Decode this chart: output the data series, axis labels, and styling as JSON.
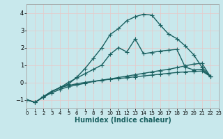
{
  "xlabel": "Humidex (Indice chaleur)",
  "bg_color": "#c8e8ec",
  "line_color": "#1a6060",
  "grid_color": "#e8c8c8",
  "xlim": [
    0,
    23
  ],
  "ylim": [
    -1.5,
    4.5
  ],
  "yticks": [
    -1,
    0,
    1,
    2,
    3,
    4
  ],
  "n_xticks": 24,
  "curves": [
    {
      "x": [
        0,
        1,
        2,
        3,
        4,
        5,
        6,
        7,
        8,
        9,
        10,
        11,
        12,
        13,
        14,
        15,
        16,
        17,
        18,
        19,
        20,
        21,
        22
      ],
      "y": [
        -1.0,
        -1.15,
        -0.85,
        -0.6,
        -0.4,
        -0.25,
        -0.15,
        -0.05,
        0.05,
        0.12,
        0.18,
        0.22,
        0.27,
        0.32,
        0.37,
        0.42,
        0.47,
        0.52,
        0.57,
        0.6,
        0.63,
        0.65,
        0.35
      ]
    },
    {
      "x": [
        0,
        1,
        2,
        3,
        4,
        5,
        6,
        7,
        8,
        9,
        10,
        11,
        12,
        13,
        14,
        15,
        16,
        17,
        18,
        19,
        20,
        21,
        22
      ],
      "y": [
        -1.0,
        -1.15,
        -0.82,
        -0.52,
        -0.3,
        -0.18,
        -0.08,
        0.0,
        0.06,
        0.13,
        0.2,
        0.28,
        0.36,
        0.44,
        0.52,
        0.6,
        0.68,
        0.75,
        0.85,
        0.95,
        1.05,
        1.1,
        0.35
      ]
    },
    {
      "x": [
        0,
        1,
        2,
        3,
        4,
        5,
        6,
        7,
        8,
        9,
        10,
        11,
        12,
        13,
        14,
        15,
        16,
        17,
        18,
        19,
        20,
        21,
        22
      ],
      "y": [
        -1.0,
        -1.15,
        -0.82,
        -0.52,
        -0.3,
        0.0,
        0.25,
        0.5,
        0.75,
        1.0,
        1.62,
        2.0,
        1.75,
        2.5,
        1.65,
        1.72,
        1.8,
        1.85,
        1.9,
        0.88,
        0.72,
        0.75,
        0.35
      ]
    },
    {
      "x": [
        0,
        1,
        2,
        3,
        4,
        5,
        6,
        7,
        8,
        9,
        10,
        11,
        12,
        13,
        14,
        15,
        16,
        17,
        18,
        19,
        20,
        21,
        22
      ],
      "y": [
        -1.0,
        -1.15,
        -0.82,
        -0.52,
        -0.3,
        -0.1,
        0.3,
        0.8,
        1.4,
        2.0,
        2.75,
        3.1,
        3.55,
        3.78,
        3.92,
        3.87,
        3.3,
        2.78,
        2.52,
        2.1,
        1.6,
        0.88,
        0.35
      ]
    }
  ],
  "markersize": 2.8,
  "linewidth": 1.0
}
